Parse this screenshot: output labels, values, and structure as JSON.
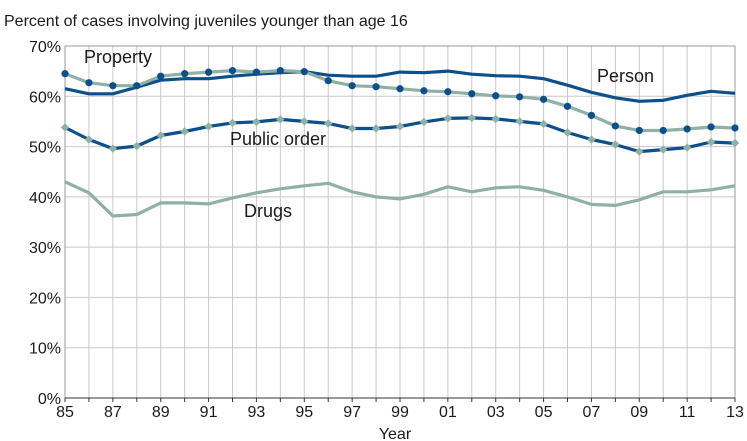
{
  "chart_data": {
    "type": "line",
    "title": "Percent of cases involving juveniles younger than age 16",
    "xlabel": "Year",
    "ylabel": "",
    "ylim": [
      0,
      70
    ],
    "y_ticks": [
      0,
      10,
      20,
      30,
      40,
      50,
      60,
      70
    ],
    "y_tick_labels": [
      "0%",
      "10%",
      "20%",
      "30%",
      "40%",
      "50%",
      "60%",
      "70%"
    ],
    "x": [
      1985,
      1986,
      1987,
      1988,
      1989,
      1990,
      1991,
      1992,
      1993,
      1994,
      1995,
      1996,
      1997,
      1998,
      1999,
      2000,
      2001,
      2002,
      2003,
      2004,
      2005,
      2006,
      2007,
      2008,
      2009,
      2010,
      2011,
      2012,
      2013
    ],
    "x_ticks": [
      1985,
      1987,
      1989,
      1991,
      1993,
      1995,
      1997,
      1999,
      2001,
      2003,
      2005,
      2007,
      2009,
      2011,
      2013
    ],
    "x_tick_labels": [
      "85",
      "87",
      "89",
      "91",
      "93",
      "95",
      "97",
      "99",
      "01",
      "03",
      "05",
      "07",
      "09",
      "11",
      "13"
    ],
    "grid": true,
    "colors": {
      "dark": "#0d4f8b",
      "light": "#8fb0a4",
      "grid": "#c8c8c8"
    },
    "series": [
      {
        "name": "Person",
        "line_color": "#0d4f8b",
        "marker": "none",
        "values": [
          61.5,
          60.5,
          60.5,
          61.8,
          63.2,
          63.5,
          63.5,
          64.0,
          64.4,
          64.7,
          64.9,
          64.2,
          64.0,
          64.0,
          64.8,
          64.7,
          65.0,
          64.4,
          64.1,
          64.0,
          63.5,
          62.2,
          60.8,
          59.7,
          59.0,
          59.2,
          60.2,
          61.0,
          60.6
        ]
      },
      {
        "name": "Property",
        "line_color": "#8fb0a4",
        "marker": "circle",
        "marker_color": "#0d4f8b",
        "values": [
          64.5,
          62.7,
          62.1,
          62.1,
          64.0,
          64.5,
          64.8,
          65.1,
          64.8,
          65.1,
          64.9,
          63.1,
          62.1,
          61.9,
          61.5,
          61.1,
          60.9,
          60.5,
          60.1,
          59.9,
          59.4,
          58.0,
          56.2,
          54.1,
          53.2,
          53.2,
          53.5,
          53.9,
          53.7
        ]
      },
      {
        "name": "Public order",
        "line_color": "#0d4f8b",
        "marker": "diamond",
        "marker_color": "#8fb0a4",
        "values": [
          53.8,
          51.4,
          49.6,
          50.1,
          52.2,
          53.0,
          54.0,
          54.7,
          54.9,
          55.4,
          55.0,
          54.6,
          53.6,
          53.6,
          54.0,
          54.9,
          55.6,
          55.7,
          55.5,
          55.0,
          54.5,
          52.8,
          51.4,
          50.4,
          49.0,
          49.4,
          49.8,
          50.9,
          50.7
        ]
      },
      {
        "name": "Drugs",
        "line_color": "#8fb0a4",
        "marker": "none",
        "values": [
          43.0,
          40.8,
          36.2,
          36.5,
          38.8,
          38.8,
          38.6,
          39.8,
          40.8,
          41.6,
          42.2,
          42.7,
          41.0,
          40.0,
          39.6,
          40.5,
          42.0,
          41.0,
          41.8,
          42.0,
          41.3,
          40.0,
          38.5,
          38.3,
          39.4,
          41.0,
          41.0,
          41.4,
          42.2
        ]
      }
    ]
  }
}
